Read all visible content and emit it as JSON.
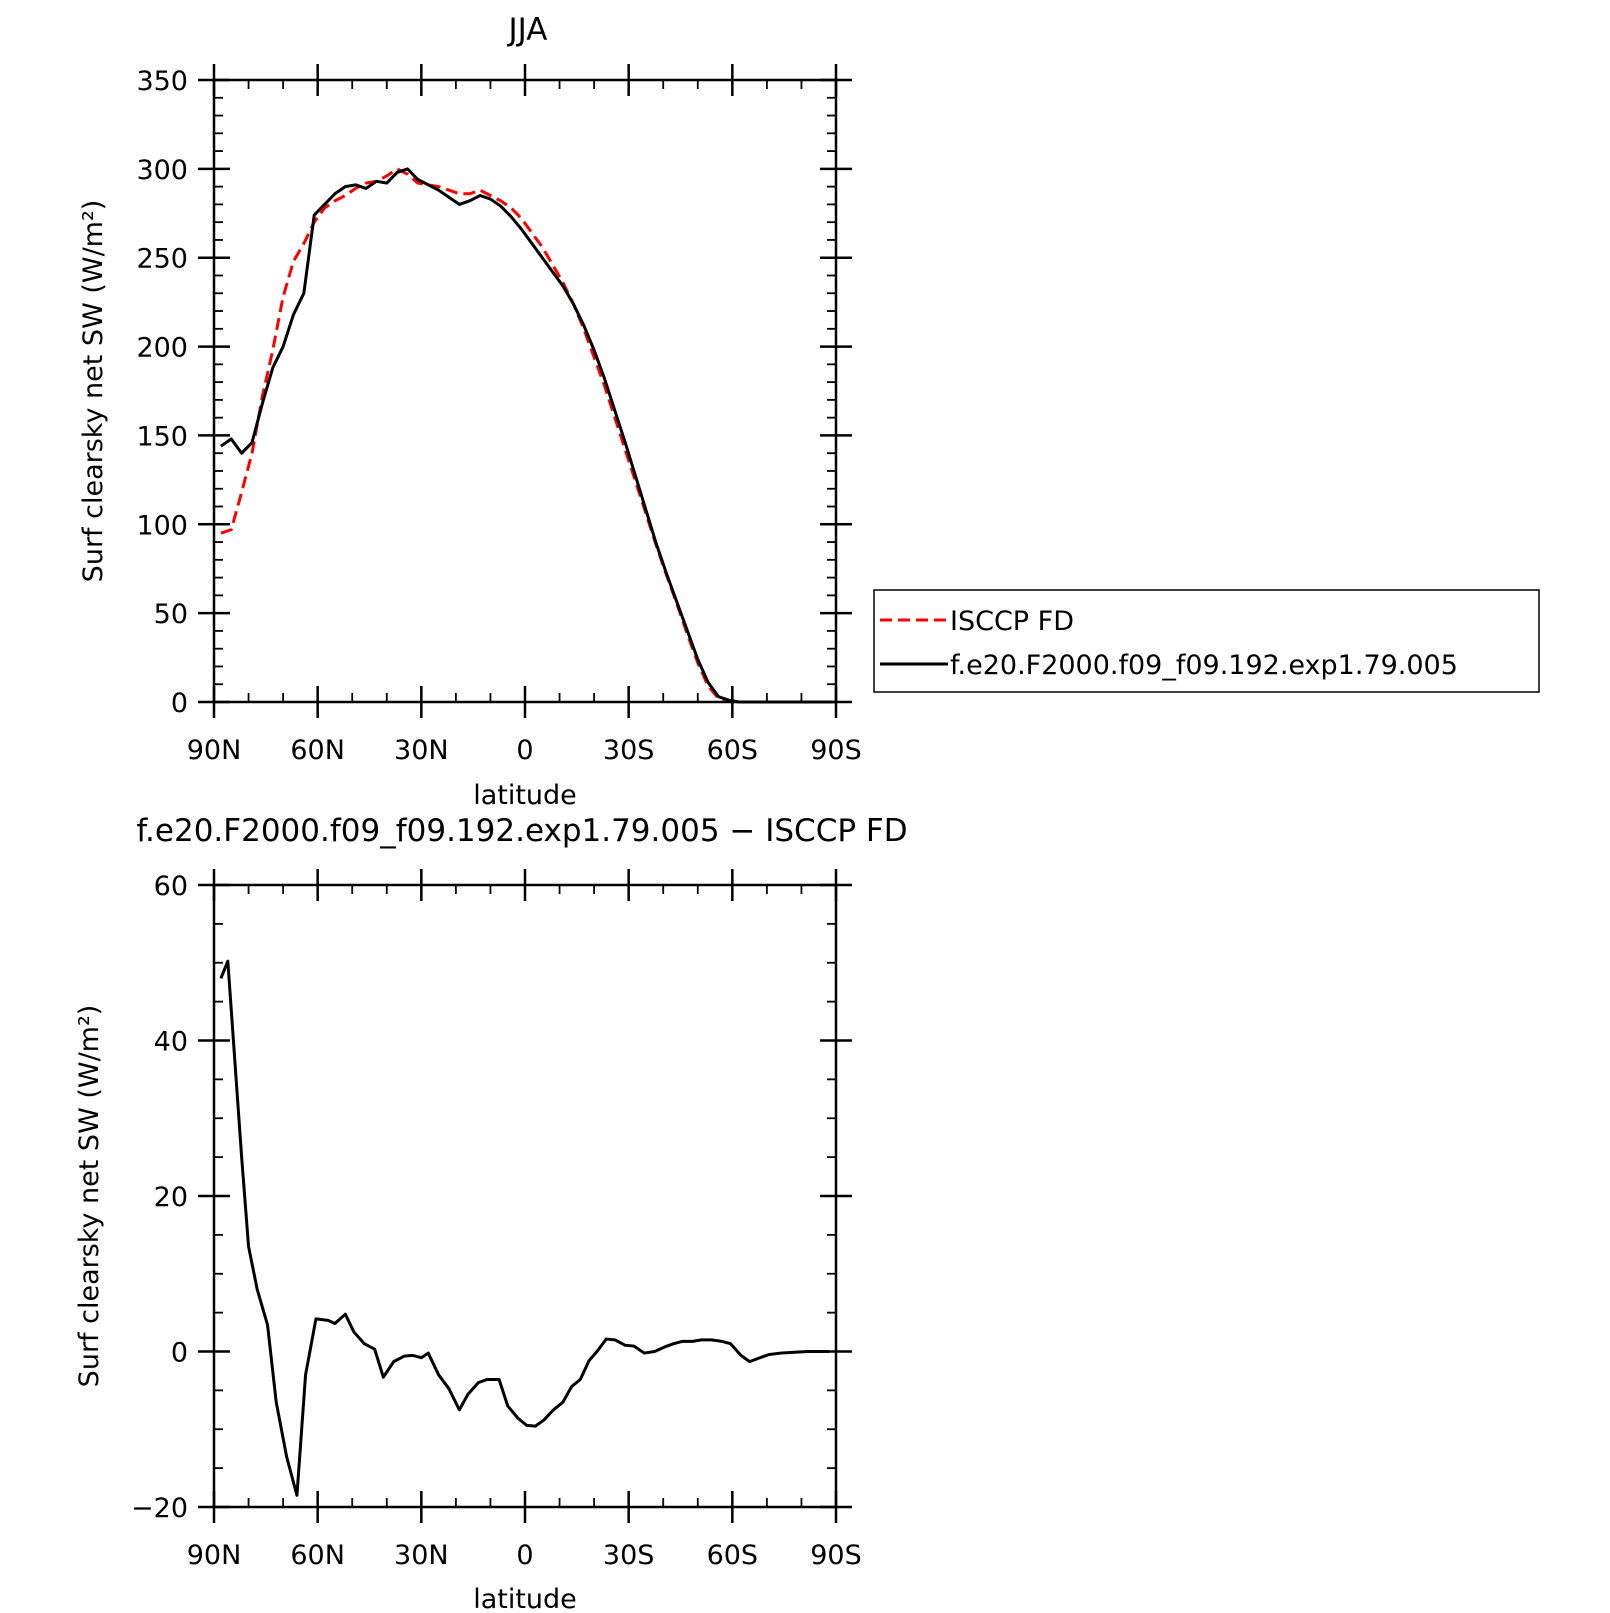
{
  "chart_data": [
    {
      "type": "line",
      "title": "JJA",
      "xlabel": "latitude",
      "ylabel": "Surf clearsky net SW (W/m²)",
      "xlim": [
        -90,
        90
      ],
      "ylim": [
        0,
        350
      ],
      "x_ticks": [
        {
          "value": -90,
          "label": "90N"
        },
        {
          "value": -60,
          "label": "60N"
        },
        {
          "value": -30,
          "label": "30N"
        },
        {
          "value": 0,
          "label": "0"
        },
        {
          "value": 30,
          "label": "30S"
        },
        {
          "value": 60,
          "label": "60S"
        },
        {
          "value": 90,
          "label": "90S"
        }
      ],
      "y_ticks": [
        {
          "value": 0,
          "label": "0"
        },
        {
          "value": 50,
          "label": "50"
        },
        {
          "value": 100,
          "label": "100"
        },
        {
          "value": 150,
          "label": "150"
        },
        {
          "value": 200,
          "label": "200"
        },
        {
          "value": 250,
          "label": "250"
        },
        {
          "value": 300,
          "label": "300"
        },
        {
          "value": 350,
          "label": "350"
        }
      ],
      "legend": "right",
      "series": [
        {
          "name": "ISCCP FD",
          "color": "#ff0000",
          "style": "dashed",
          "x": [
            -88,
            -85,
            -82,
            -79,
            -76,
            -73,
            -70,
            -67,
            -64,
            -61,
            -58,
            -55,
            -52,
            -49,
            -46,
            -43,
            -40,
            -37,
            -34,
            -31,
            -28,
            -25,
            -22,
            -19,
            -16,
            -13,
            -10,
            -7,
            -4,
            -1,
            2,
            5,
            8,
            11,
            14,
            17,
            20,
            23,
            26,
            29,
            32,
            35,
            38,
            41,
            44,
            47,
            50,
            53,
            56,
            59,
            62,
            65,
            68,
            71,
            74,
            77,
            80,
            83,
            86,
            89
          ],
          "y": [
            95,
            97,
            118,
            140,
            172,
            198,
            228,
            248,
            258,
            270,
            278,
            282,
            285,
            289,
            292,
            293,
            296,
            300,
            297,
            292,
            291,
            290,
            288,
            286,
            286,
            288,
            285,
            282,
            278,
            272,
            264,
            256,
            246,
            236,
            224,
            210,
            194,
            178,
            160,
            142,
            124,
            106,
            88,
            71,
            55,
            38,
            22,
            9,
            2,
            0.5,
            0,
            0,
            0,
            0,
            0,
            0,
            0,
            0,
            0,
            0
          ]
        },
        {
          "name": "f.e20.F2000.f09_f09.192.exp1.79.005",
          "color": "#000000",
          "style": "solid",
          "x": [
            -88,
            -85,
            -82,
            -79,
            -76,
            -73,
            -70,
            -67,
            -64,
            -61,
            -58,
            -55,
            -52,
            -49,
            -46,
            -43,
            -40,
            -37,
            -34,
            -31,
            -28,
            -25,
            -22,
            -19,
            -16,
            -13,
            -10,
            -7,
            -4,
            -1,
            2,
            5,
            8,
            11,
            14,
            17,
            20,
            23,
            26,
            29,
            32,
            35,
            38,
            41,
            44,
            47,
            50,
            53,
            56,
            59,
            62,
            65,
            68,
            71,
            74,
            77,
            80,
            83,
            86,
            89
          ],
          "y": [
            144,
            148,
            140,
            146,
            168,
            188,
            200,
            218,
            230,
            274,
            280,
            286,
            290,
            291,
            289,
            293,
            292,
            298,
            300,
            294,
            291,
            288,
            284,
            280,
            282,
            285,
            283,
            279,
            273,
            266,
            258,
            250,
            242,
            234,
            224,
            212,
            198,
            182,
            164,
            146,
            127,
            108,
            89,
            72,
            56,
            40,
            24,
            11,
            3,
            1,
            0,
            0,
            0,
            0,
            0,
            0,
            0,
            0,
            0,
            0
          ]
        }
      ]
    },
    {
      "type": "line",
      "title": "f.e20.F2000.f09_f09.192.exp1.79.005 − ISCCP FD",
      "xlabel": "latitude",
      "ylabel": "Surf clearsky net SW (W/m²)",
      "xlim": [
        -90,
        90
      ],
      "ylim": [
        -20,
        60
      ],
      "x_ticks": [
        {
          "value": -90,
          "label": "90N"
        },
        {
          "value": -60,
          "label": "60N"
        },
        {
          "value": -30,
          "label": "30N"
        },
        {
          "value": 0,
          "label": "0"
        },
        {
          "value": 30,
          "label": "30S"
        },
        {
          "value": 60,
          "label": "60S"
        },
        {
          "value": 90,
          "label": "90S"
        }
      ],
      "y_ticks": [
        {
          "value": -20,
          "label": "−20"
        },
        {
          "value": 0,
          "label": "0"
        },
        {
          "value": 20,
          "label": "20"
        },
        {
          "value": 40,
          "label": "40"
        },
        {
          "value": 60,
          "label": "60"
        }
      ],
      "series": [
        {
          "color": "#000000",
          "style": "solid",
          "x": [
            -88,
            -86,
            -82,
            -80,
            -77.5,
            -74.5,
            -72,
            -69,
            -66,
            -63.5,
            -60.5,
            -57,
            -55,
            -52,
            -49.5,
            -46.5,
            -43.5,
            -41,
            -38,
            -35,
            -32.5,
            -30,
            -28,
            -25,
            -22,
            -19,
            -16.5,
            -13.5,
            -11,
            -7.5,
            -5,
            -2,
            0.5,
            3,
            5.5,
            8,
            11,
            13.5,
            16,
            18.5,
            21,
            23.5,
            26,
            29,
            31.5,
            34.5,
            37.5,
            40.5,
            43,
            45.5,
            48.5,
            51,
            54,
            57,
            59.5,
            62.5,
            65,
            68,
            70.5,
            74,
            78,
            82,
            86,
            88
          ],
          "y": [
            48,
            50.2,
            25,
            13.5,
            8,
            3.4,
            -6.5,
            -13.5,
            -18.5,
            -3,
            4.2,
            4,
            3.6,
            4.8,
            2.5,
            1,
            0.3,
            -3.3,
            -1.3,
            -0.6,
            -0.5,
            -0.8,
            -0.2,
            -3,
            -4.8,
            -7.5,
            -5.5,
            -4,
            -3.6,
            -3.6,
            -7,
            -8.6,
            -9.5,
            -9.6,
            -8.8,
            -7.6,
            -6.5,
            -4.5,
            -3.6,
            -1.2,
            0.1,
            1.6,
            1.5,
            0.8,
            0.7,
            -0.2,
            0,
            0.6,
            1,
            1.3,
            1.3,
            1.5,
            1.5,
            1.3,
            1,
            -0.5,
            -1.3,
            -0.8,
            -0.4,
            -0.2,
            -0.1,
            0,
            0,
            0
          ]
        }
      ]
    }
  ]
}
